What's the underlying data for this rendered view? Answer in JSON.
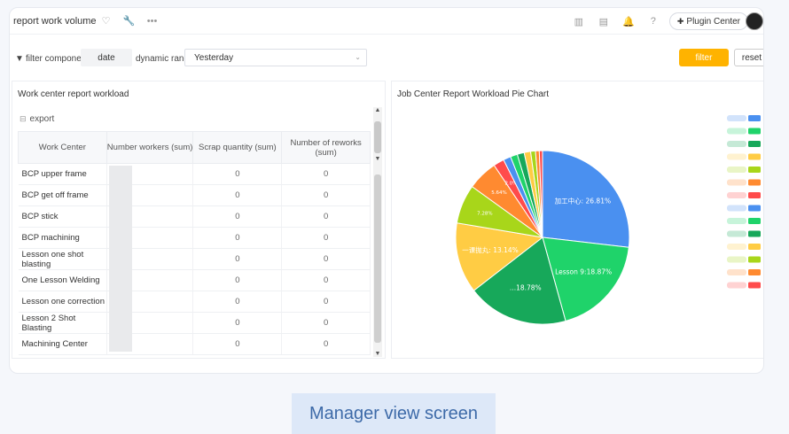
{
  "topbar": {
    "title": "report work volume",
    "plugin_center_label": "Plugin Center"
  },
  "filter": {
    "component_label": "filter component",
    "date_value": "date",
    "range_label": "dynamic range",
    "range_value": "Yesterday",
    "filter_button": "filter",
    "reset_button": "reset"
  },
  "left_panel": {
    "title": "Work center report workload",
    "export_label": "export",
    "columns": [
      "Work Center",
      "Number workers (sum)",
      "Scrap quantity (sum)",
      "Number of reworks (sum)"
    ],
    "rows": [
      {
        "name": "BCP upper frame",
        "scrap": "0",
        "rework": "0"
      },
      {
        "name": "BCP get off frame",
        "scrap": "0",
        "rework": "0"
      },
      {
        "name": "BCP stick",
        "scrap": "0",
        "rework": "0"
      },
      {
        "name": "BCP machining",
        "scrap": "0",
        "rework": "0"
      },
      {
        "name": "Lesson one shot blasting",
        "scrap": "0",
        "rework": "0"
      },
      {
        "name": "One Lesson Welding",
        "scrap": "0",
        "rework": "0"
      },
      {
        "name": "Lesson one correction",
        "scrap": "0",
        "rework": "0"
      },
      {
        "name": "Lesson 2 Shot Blasting",
        "scrap": "0",
        "rework": "0"
      },
      {
        "name": "Machining Center",
        "scrap": "0",
        "rework": "0"
      }
    ]
  },
  "right_panel": {
    "title": "Job Center Report Workload Pie Chart"
  },
  "chart_data": {
    "type": "pie",
    "title": "Job Center Report Workload Pie Chart",
    "slices": [
      {
        "label": "加工中心: 26.81%",
        "value": 26.81,
        "color": "#4a90f0"
      },
      {
        "label": "Lesson 9:18.87%",
        "value": 18.87,
        "color": "#1fd36a"
      },
      {
        "label": "...18.78%",
        "value": 18.78,
        "color": "#17a85a"
      },
      {
        "label": "一课抛丸: 13.14%",
        "value": 13.14,
        "color": "#ffcc44"
      },
      {
        "label": "7.28%",
        "value": 7.28,
        "color": "#a8d61a"
      },
      {
        "label": "5.64%",
        "value": 5.64,
        "color": "#ff8a30"
      },
      {
        "label": "2.0%",
        "value": 2.0,
        "color": "#ff4b4b"
      },
      {
        "label": "",
        "value": 1.4,
        "color": "#4a90f0"
      },
      {
        "label": "",
        "value": 1.3,
        "color": "#1fd36a"
      },
      {
        "label": "",
        "value": 1.3,
        "color": "#17a85a"
      },
      {
        "label": "",
        "value": 1.2,
        "color": "#ffcc44"
      },
      {
        "label": "",
        "value": 0.9,
        "color": "#a8d61a"
      },
      {
        "label": "",
        "value": 0.7,
        "color": "#ff8a30"
      },
      {
        "label": "",
        "value": 0.6,
        "color": "#ff4b4b"
      }
    ],
    "legend_colors": [
      "#4a90f0",
      "#1fd36a",
      "#17a85a",
      "#ffcc44",
      "#a8d61a",
      "#ff8a30",
      "#ff4b4b",
      "#4a90f0",
      "#1fd36a",
      "#17a85a",
      "#ffcc44",
      "#a8d61a",
      "#ff8a30",
      "#ff4b4b"
    ],
    "legend_placement": "right"
  },
  "caption": "Manager view screen"
}
